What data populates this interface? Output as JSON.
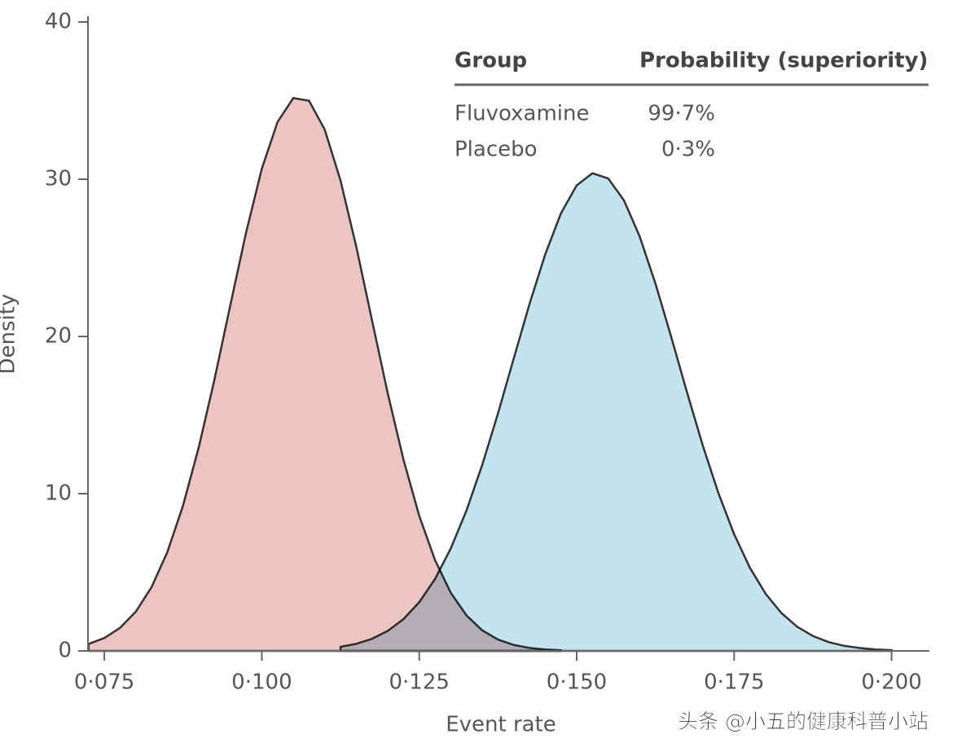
{
  "chart_data": {
    "type": "area",
    "xlabel": "Event rate",
    "ylabel": "Density",
    "xlim": [
      0.0724,
      0.206
    ],
    "ylim": [
      0,
      40
    ],
    "xticks": [
      {
        "value": 0.075,
        "label": "0·075"
      },
      {
        "value": 0.1,
        "label": "0·100"
      },
      {
        "value": 0.125,
        "label": "0·125"
      },
      {
        "value": 0.15,
        "label": "0·150"
      },
      {
        "value": 0.175,
        "label": "0·175"
      },
      {
        "value": 0.2,
        "label": "0·200"
      }
    ],
    "yticks": [
      0,
      10,
      20,
      30,
      40
    ],
    "table_header": [
      "Group",
      "Probability (superiority)"
    ],
    "series": [
      {
        "name": "Fluvoxamine",
        "color": "#ecc4c1",
        "probability": {
          "value": 99.7,
          "label": "99·7%"
        },
        "x": [
          0.0725,
          0.075,
          0.0775,
          0.08,
          0.0825,
          0.085,
          0.0875,
          0.09,
          0.0925,
          0.095,
          0.0975,
          0.1,
          0.1025,
          0.105,
          0.1075,
          0.11,
          0.1125,
          0.115,
          0.1175,
          0.12,
          0.1225,
          0.125,
          0.1275,
          0.13,
          0.1325,
          0.135,
          0.1375,
          0.14,
          0.1425,
          0.145,
          0.1475
        ],
        "values": [
          0.44,
          0.82,
          1.47,
          2.5,
          4.06,
          6.28,
          9.25,
          12.96,
          17.29,
          21.98,
          26.6,
          30.66,
          33.64,
          35.16,
          34.99,
          33.15,
          29.92,
          25.71,
          21.03,
          16.38,
          12.16,
          8.59,
          5.78,
          3.7,
          2.26,
          1.31,
          0.72,
          0.38,
          0.19,
          0.09,
          0.04
        ]
      },
      {
        "name": "Placebo",
        "color": "#c3e3ee",
        "probability": {
          "value": 0.3,
          "label": "0·3%"
        },
        "x": [
          0.1125,
          0.115,
          0.1175,
          0.12,
          0.1225,
          0.125,
          0.1275,
          0.13,
          0.1325,
          0.135,
          0.1375,
          0.14,
          0.1425,
          0.145,
          0.1475,
          0.15,
          0.1525,
          0.155,
          0.1575,
          0.16,
          0.1625,
          0.165,
          0.1675,
          0.17,
          0.1725,
          0.175,
          0.1775,
          0.18,
          0.1825,
          0.185,
          0.1875,
          0.19,
          0.1925,
          0.195,
          0.1975,
          0.2
        ],
        "values": [
          0.26,
          0.45,
          0.77,
          1.27,
          2.02,
          3.1,
          4.57,
          6.51,
          8.93,
          11.83,
          15.1,
          18.59,
          22.05,
          25.22,
          27.83,
          29.61,
          30.38,
          30.05,
          28.66,
          26.36,
          23.37,
          19.98,
          16.47,
          13.09,
          10.04,
          7.42,
          5.29,
          3.63,
          2.41,
          1.54,
          0.95,
          0.56,
          0.32,
          0.18,
          0.09,
          0.05
        ]
      }
    ],
    "watermark": "头条 @小五的健康科普小站"
  }
}
